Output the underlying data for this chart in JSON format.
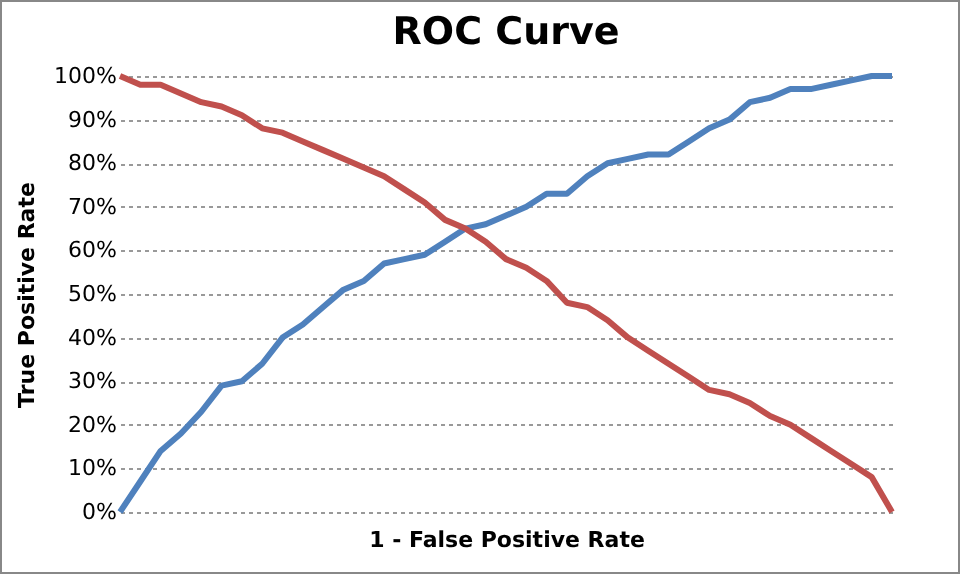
{
  "chart_data": {
    "type": "line",
    "title": "ROC Curve",
    "xlabel": "1 - False Positive Rate",
    "ylabel": "True Positive Rate",
    "categories": [
      null,
      null,
      null,
      null,
      null,
      null,
      null,
      null,
      null,
      null,
      null,
      null,
      null,
      null,
      null,
      null,
      null,
      null,
      null,
      null,
      null,
      null,
      null,
      null,
      null,
      null,
      null,
      null,
      null,
      null,
      null,
      null,
      null,
      null,
      null,
      null,
      null,
      null,
      null
    ],
    "series": [
      {
        "color": "#4f81bd",
        "values": [
          0,
          7,
          14,
          18,
          23,
          29,
          30,
          34,
          40,
          43,
          47,
          51,
          53,
          57,
          58,
          59,
          62,
          65,
          66,
          68,
          70,
          73,
          73,
          77,
          80,
          81,
          82,
          82,
          85,
          88,
          90,
          94,
          95,
          97,
          97,
          98,
          99,
          100,
          100
        ]
      },
      {
        "color": "#c0504d",
        "values": [
          100,
          98,
          98,
          96,
          94,
          93,
          91,
          88,
          87,
          85,
          83,
          81,
          79,
          77,
          74,
          71,
          67,
          65,
          62,
          58,
          56,
          53,
          48,
          47,
          44,
          40,
          37,
          34,
          31,
          28,
          27,
          25,
          22,
          20,
          17,
          14,
          11,
          8,
          0
        ]
      }
    ],
    "ylim": [
      0,
      100
    ],
    "yticks": [
      {
        "value": 0,
        "label": "0%"
      },
      {
        "value": 10,
        "label": "10%"
      },
      {
        "value": 20,
        "label": "20%"
      },
      {
        "value": 30,
        "label": "30%"
      },
      {
        "value": 40,
        "label": "40%"
      },
      {
        "value": 50,
        "label": "50%"
      },
      {
        "value": 60,
        "label": "60%"
      },
      {
        "value": 70,
        "label": "70%"
      },
      {
        "value": 80,
        "label": "80%"
      },
      {
        "value": 90,
        "label": "90%"
      },
      {
        "value": 100,
        "label": "100%"
      }
    ],
    "grid": "y",
    "legend": false,
    "tick_labels": "y"
  }
}
